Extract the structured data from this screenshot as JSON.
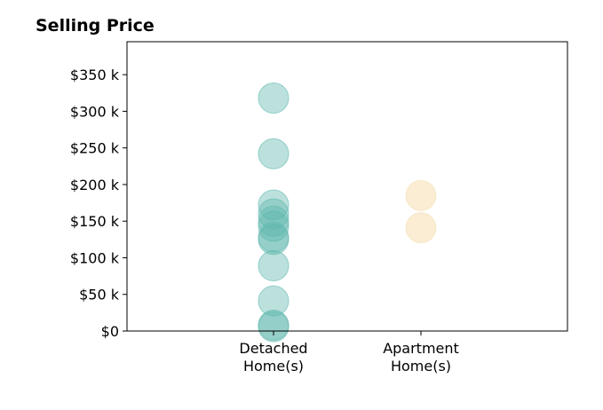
{
  "chart_data": {
    "type": "scatter",
    "title": "Selling Price",
    "xlabel": "",
    "ylabel": "",
    "categories": [
      "Detached\nHome(s)",
      "Apartment\nHome(s)"
    ],
    "category_ticks": [
      [
        "Detached",
        "Home(s)"
      ],
      [
        "Apartment",
        "Home(s)"
      ]
    ],
    "ylim": [
      0,
      395000
    ],
    "y_ticks": [
      0,
      50000,
      100000,
      150000,
      200000,
      250000,
      300000,
      350000
    ],
    "y_tick_labels": [
      "$0",
      "$50 k",
      "$100 k",
      "$150 k",
      "$200 k",
      "$250 k",
      "$300 k",
      "$350 k"
    ],
    "grid": false,
    "series": [
      {
        "category": "Detached\nHome(s)",
        "color": "#5fb8ad",
        "values": [
          318000,
          242000,
          172000,
          160000,
          150000,
          143000,
          128000,
          125000,
          89000,
          41000,
          8000,
          6000
        ]
      },
      {
        "category": "Apartment\nHome(s)",
        "color": "#f5dfb0",
        "values": [
          185000,
          141000
        ]
      }
    ]
  }
}
